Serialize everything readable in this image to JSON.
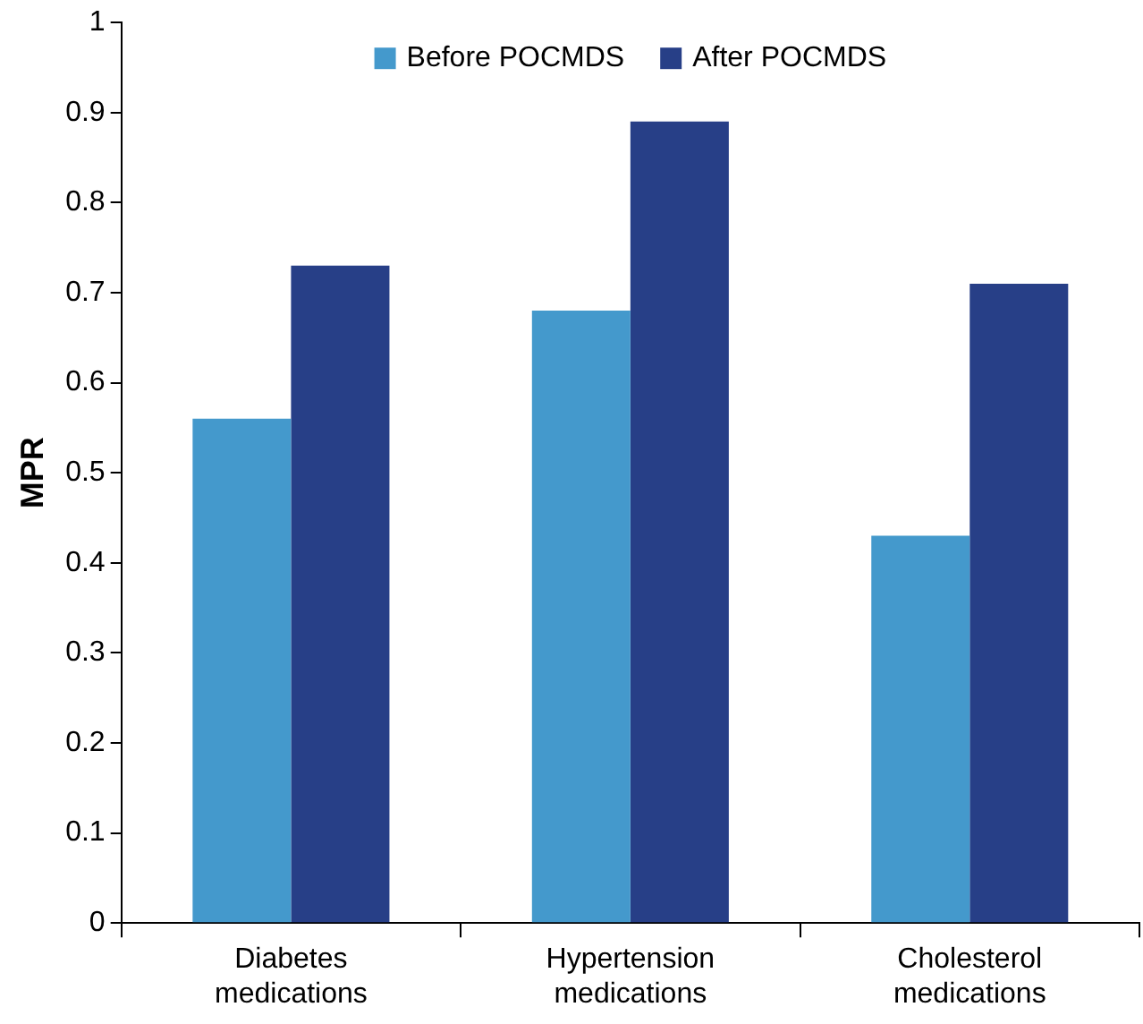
{
  "chart_data": {
    "type": "bar",
    "ylabel": "MPR",
    "categories": [
      "Diabetes medications",
      "Hypertension medications",
      "Cholesterol medications"
    ],
    "series": [
      {
        "name": "Before POCMDS",
        "color": "#4499cc",
        "values": [
          0.56,
          0.68,
          0.43
        ]
      },
      {
        "name": "After POCMDS",
        "color": "#273f87",
        "values": [
          0.73,
          0.89,
          0.71
        ]
      }
    ],
    "ylim": [
      0,
      1
    ],
    "yticks": [
      0,
      0.1,
      0.2,
      0.3,
      0.4,
      0.5,
      0.6,
      0.7,
      0.8,
      0.9,
      1
    ],
    "grid": false,
    "legend": "top"
  }
}
